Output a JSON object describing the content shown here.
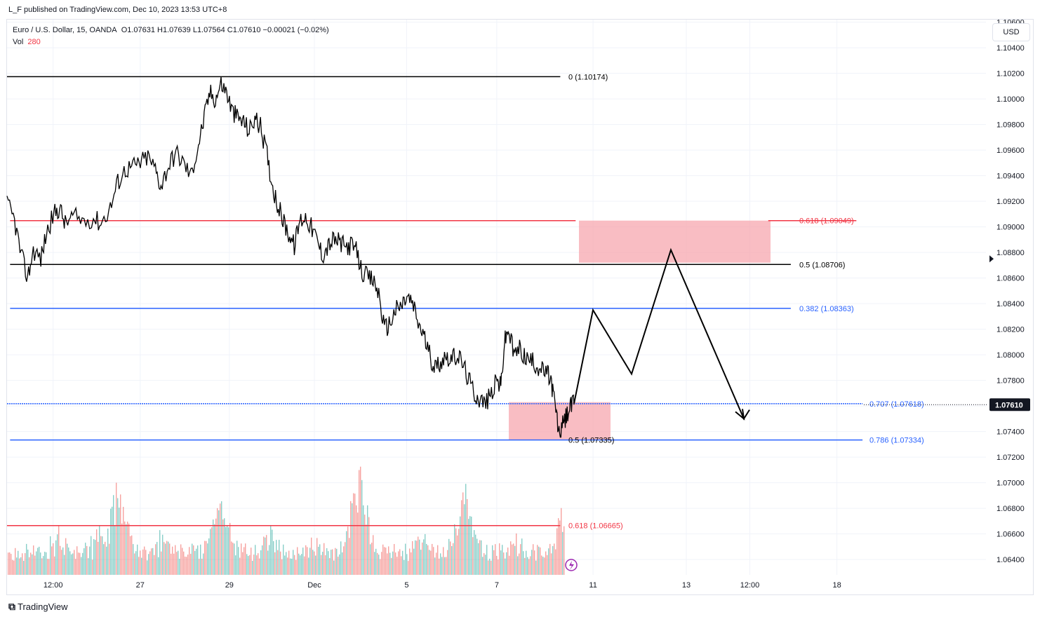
{
  "header": {
    "published": "L_F published on TradingView.com, Dec 10, 2023 13:53 UTC+8"
  },
  "legend": {
    "symbol": "Euro / U.S. Dollar, 15, OANDA",
    "ohlc": "O1.07631  H1.07639  L1.07564  C1.07610  −0.00021 (−0.02%)",
    "vol_label": "Vol",
    "vol_value": "280"
  },
  "currency_button": "USD",
  "footer": {
    "brand": "TradingView"
  },
  "colors": {
    "price_line": "#000000",
    "fib_red": "#f23645",
    "fib_blue": "#2962ff",
    "zone_fill": "#f7a1aa",
    "vol_up": "#26a69a",
    "vol_down": "#ef5350",
    "grid": "#f0f3fa"
  },
  "chart_data": {
    "type": "line",
    "title": "",
    "xlabel": "",
    "ylabel": "",
    "ylim": [
      1.0628,
      1.1062
    ],
    "yticks": [
      "1.10600",
      "1.10400",
      "1.10200",
      "1.10000",
      "1.09800",
      "1.09600",
      "1.09400",
      "1.09200",
      "1.09000",
      "1.08800",
      "1.08600",
      "1.08400",
      "1.08200",
      "1.08000",
      "1.07800",
      "1.07600",
      "1.07400",
      "1.07200",
      "1.07000",
      "1.06800",
      "1.06600",
      "1.06400"
    ],
    "xticks": [
      "12:00",
      "27",
      "29",
      "Dec",
      "5",
      "7",
      "11",
      "13",
      "12:00",
      "18"
    ],
    "last_price": "1.07610",
    "price_series_points": [
      [
        0,
        1.0918
      ],
      [
        8,
        1.0905
      ],
      [
        15,
        1.0878
      ],
      [
        22,
        1.086
      ],
      [
        28,
        1.0882
      ],
      [
        36,
        1.0875
      ],
      [
        42,
        1.0895
      ],
      [
        50,
        1.091
      ],
      [
        56,
        1.0915
      ],
      [
        62,
        1.0902
      ],
      [
        70,
        1.0908
      ],
      [
        80,
        1.0905
      ],
      [
        92,
        1.0907
      ],
      [
        100,
        1.0903
      ],
      [
        110,
        1.0915
      ],
      [
        118,
        1.0935
      ],
      [
        126,
        1.0945
      ],
      [
        134,
        1.0947
      ],
      [
        142,
        1.095
      ],
      [
        150,
        1.0955
      ],
      [
        158,
        1.0945
      ],
      [
        164,
        1.0932
      ],
      [
        172,
        1.0948
      ],
      [
        180,
        1.0958
      ],
      [
        188,
        1.095
      ],
      [
        196,
        1.094
      ],
      [
        204,
        1.0965
      ],
      [
        210,
        1.0985
      ],
      [
        216,
        1.1005
      ],
      [
        222,
        1.1
      ],
      [
        228,
        1.1012
      ],
      [
        234,
        1.1005
      ],
      [
        240,
        1.099
      ],
      [
        246,
        1.0985
      ],
      [
        252,
        1.0982
      ],
      [
        258,
        1.0975
      ],
      [
        264,
        1.0985
      ],
      [
        270,
        1.0978
      ],
      [
        276,
        1.096
      ],
      [
        282,
        1.0935
      ],
      [
        288,
        1.0918
      ],
      [
        294,
        1.0905
      ],
      [
        300,
        1.0895
      ],
      [
        306,
        1.0885
      ],
      [
        312,
        1.0905
      ],
      [
        318,
        1.0908
      ],
      [
        324,
        1.09
      ],
      [
        330,
        1.089
      ],
      [
        336,
        1.0878
      ],
      [
        342,
        1.0885
      ],
      [
        348,
        1.089
      ],
      [
        354,
        1.0888
      ],
      [
        360,
        1.0884
      ],
      [
        366,
        1.0886
      ],
      [
        372,
        1.0881
      ],
      [
        378,
        1.0865
      ],
      [
        384,
        1.086
      ],
      [
        390,
        1.0858
      ],
      [
        396,
        1.0848
      ],
      [
        402,
        1.082
      ],
      [
        408,
        1.0825
      ],
      [
        414,
        1.0835
      ],
      [
        420,
        1.0838
      ],
      [
        426,
        1.0845
      ],
      [
        432,
        1.084
      ],
      [
        438,
        1.0825
      ],
      [
        444,
        1.0815
      ],
      [
        450,
        1.08
      ],
      [
        456,
        1.079
      ],
      [
        462,
        1.0795
      ],
      [
        468,
        1.08
      ],
      [
        474,
        1.0796
      ],
      [
        480,
        1.08
      ],
      [
        486,
        1.0792
      ],
      [
        492,
        1.078
      ],
      [
        498,
        1.077
      ],
      [
        504,
        1.0765
      ],
      [
        510,
        1.0762
      ],
      [
        516,
        1.077
      ],
      [
        522,
        1.078
      ],
      [
        526,
        1.0775
      ],
      [
        530,
        1.081
      ],
      [
        534,
        1.082
      ],
      [
        540,
        1.08
      ],
      [
        546,
        1.0805
      ],
      [
        552,
        1.0798
      ],
      [
        558,
        1.0795
      ],
      [
        564,
        1.0792
      ],
      [
        570,
        1.0788
      ],
      [
        576,
        1.0785
      ],
      [
        580,
        1.0778
      ],
      [
        584,
        1.076
      ],
      [
        588,
        1.0738
      ],
      [
        592,
        1.0745
      ],
      [
        596,
        1.0752
      ],
      [
        600,
        1.076
      ],
      [
        604,
        1.0761
      ]
    ],
    "projection_path": [
      [
        604,
        1.0762
      ],
      [
        630,
        1.0835
      ],
      [
        685,
        1.0785
      ],
      [
        740,
        1.0882
      ],
      [
        845,
        1.075
      ],
      [
        855,
        1.0757
      ]
    ],
    "volume": {
      "spikes": [
        {
          "x": 0.2,
          "h": 0.45
        },
        {
          "x": 0.38,
          "h": 0.35
        },
        {
          "x": 0.63,
          "h": 0.55
        },
        {
          "x": 0.82,
          "h": 0.4
        },
        {
          "x": 1.0,
          "h": 0.3
        }
      ]
    },
    "fib_levels": [
      {
        "label": "0 (1.10174)",
        "price": 1.10174,
        "color": "black",
        "x_start": 0,
        "x_end": 0.54,
        "label_x": 0.545
      },
      {
        "label": "0.618 (1.09049)",
        "price": 1.09049,
        "color": "red",
        "x_start": 0.003,
        "x_end": 0.555,
        "label_x": 0.765,
        "gap": [
          0.555,
          0.743
        ]
      },
      {
        "label": "0.5 (1.08706)",
        "price": 1.08706,
        "color": "black",
        "x_start": 0.003,
        "x_end": 0.765,
        "label_x": 0.765
      },
      {
        "label": "0.382 (1.08363)",
        "price": 1.08363,
        "color": "blue",
        "x_start": 0.003,
        "x_end": 0.765,
        "label_x": 0.765
      },
      {
        "label": "0.707 (1.07618)",
        "price": 1.07618,
        "color": "blue",
        "x_start": 0,
        "x_end": 0.835,
        "label_x": 0.838
      },
      {
        "label": "0.786 (1.07334)",
        "price": 1.07334,
        "color": "blue",
        "x_start": 0.003,
        "x_end": 0.835,
        "label_x": 0.838
      },
      {
        "label": "0.5 (1.07335)",
        "price": 1.07335,
        "color": "black",
        "x_start": 0.545,
        "x_end": 0.545,
        "label_x": 0.545
      },
      {
        "label": "0.618 (1.06665)",
        "price": 1.06665,
        "color": "red",
        "x_start": 0,
        "x_end": 0.54,
        "label_x": 0.545
      }
    ],
    "zones": [
      {
        "price_top": 1.09049,
        "price_bottom": 1.0872
      },
      {
        "price_top": 1.0763,
        "price_bottom": 1.07335
      }
    ]
  }
}
